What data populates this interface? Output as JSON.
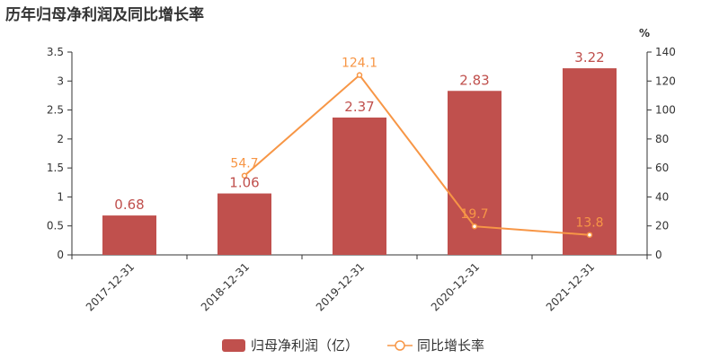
{
  "chart_data": {
    "type": "bar+line",
    "title": "历年归母净利润及同比增长率",
    "categories": [
      "2017-12-31",
      "2018-12-31",
      "2019-12-31",
      "2020-12-31",
      "2021-12-31"
    ],
    "series": [
      {
        "name": "归母净利润（亿）",
        "type": "bar",
        "axis": "left",
        "color": "#c0504d",
        "values": [
          0.68,
          1.06,
          2.37,
          2.83,
          3.22
        ],
        "labels": [
          "0.68",
          "1.06",
          "2.37",
          "2.83",
          "3.22"
        ]
      },
      {
        "name": "同比增长率",
        "type": "line",
        "axis": "right",
        "color": "#f79646",
        "values": [
          null,
          54.7,
          124.1,
          19.7,
          13.8
        ],
        "labels": [
          "",
          "54.7",
          "124.1",
          "19.7",
          "13.8"
        ]
      }
    ],
    "y_left": {
      "ylim": [
        0,
        3.5
      ],
      "ticks": [
        "0",
        "0.5",
        "1",
        "1.5",
        "2",
        "2.5",
        "3",
        "3.5"
      ]
    },
    "y_right": {
      "ylabel": "%",
      "ylim": [
        0,
        140
      ],
      "ticks": [
        "0",
        "20",
        "40",
        "60",
        "80",
        "100",
        "120",
        "140"
      ]
    },
    "grid": false,
    "legend_position": "bottom-center"
  }
}
